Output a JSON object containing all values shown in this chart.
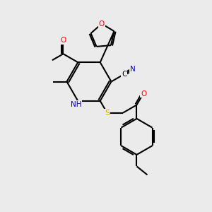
{
  "bg_color": "#ebebeb",
  "bond_color": "#000000",
  "atom_colors": {
    "O": "#ff0000",
    "N": "#0000cd",
    "S": "#ccaa00",
    "C": "#000000"
  },
  "bond_lw": 1.5,
  "fontsize": 7.5
}
